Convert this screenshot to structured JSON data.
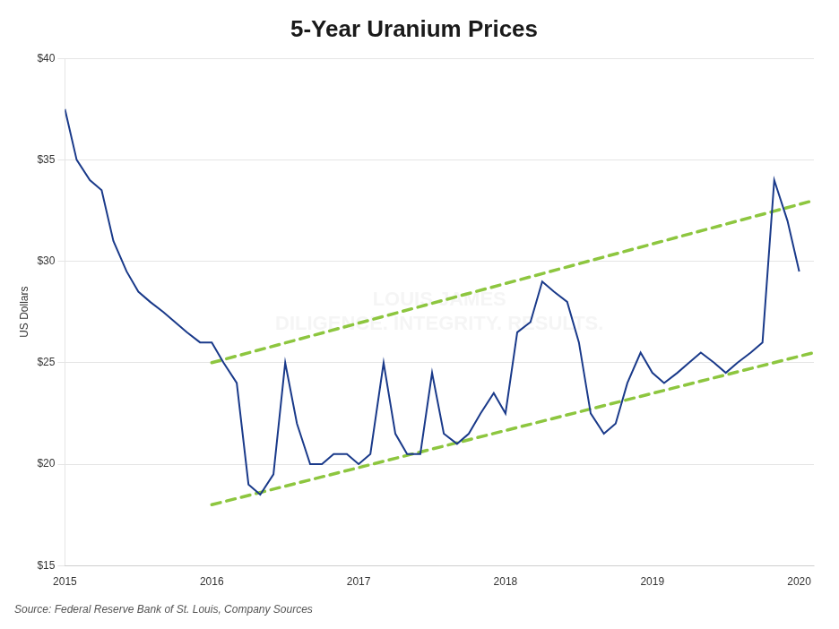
{
  "chart_data": {
    "type": "line",
    "title": "5-Year Uranium Prices",
    "ylabel": "US Dollars",
    "annotations": [
      "Source: Federal Reserve Bank of St. Louis, Company Sources",
      "LOUIS JAMES\nDILIGENCE. INTEGRITY. RESULTS."
    ],
    "xlim": [
      2015.0,
      2020.1
    ],
    "ylim": [
      15,
      40
    ],
    "xticks": [
      2015,
      2016,
      2017,
      2018,
      2019,
      2020
    ],
    "yticks": [
      {
        "value": 15,
        "label": "$15"
      },
      {
        "value": 20,
        "label": "$20"
      },
      {
        "value": 25,
        "label": "$25"
      },
      {
        "value": 30,
        "label": "$30"
      },
      {
        "value": 35,
        "label": "$35"
      },
      {
        "value": 40,
        "label": "$40"
      }
    ],
    "grid": "y",
    "series": [
      {
        "color": "#1a3a8a",
        "line_style": "solid",
        "x": [
          2015.0,
          2015.08,
          2015.17,
          2015.25,
          2015.33,
          2015.42,
          2015.5,
          2015.58,
          2015.67,
          2015.75,
          2015.83,
          2015.92,
          2016.0,
          2016.08,
          2016.17,
          2016.25,
          2016.33,
          2016.42,
          2016.5,
          2016.58,
          2016.67,
          2016.75,
          2016.83,
          2016.92,
          2017.0,
          2017.08,
          2017.17,
          2017.25,
          2017.33,
          2017.42,
          2017.5,
          2017.58,
          2017.67,
          2017.75,
          2017.83,
          2017.92,
          2018.0,
          2018.08,
          2018.17,
          2018.25,
          2018.33,
          2018.42,
          2018.5,
          2018.58,
          2018.67,
          2018.75,
          2018.83,
          2018.92,
          2019.0,
          2019.08,
          2019.17,
          2019.25,
          2019.33,
          2019.42,
          2019.5,
          2019.58,
          2019.67,
          2019.75,
          2019.83,
          2019.92,
          2020.0
        ],
        "values": [
          37.5,
          35.0,
          34.0,
          33.5,
          31.0,
          29.5,
          28.5,
          28.0,
          27.5,
          27.0,
          26.5,
          26.0,
          26.0,
          25.0,
          24.0,
          19.0,
          18.5,
          19.5,
          25.0,
          22.0,
          20.0,
          20.0,
          20.5,
          20.5,
          20.0,
          20.5,
          25.0,
          21.5,
          20.5,
          20.5,
          24.5,
          21.5,
          21.0,
          21.5,
          22.5,
          23.5,
          22.5,
          26.5,
          27.0,
          29.0,
          28.5,
          28.0,
          26.0,
          22.5,
          21.5,
          22.0,
          24.0,
          25.5,
          24.5,
          24.0,
          24.5,
          25.0,
          25.5,
          25.0,
          24.5,
          25.0,
          25.5,
          26.0,
          34.0,
          32.0,
          29.5
        ]
      },
      {
        "color": "#8dc63f",
        "line_style": "dashed",
        "x": [
          2016.0,
          2020.1
        ],
        "values": [
          25.0,
          33.0
        ]
      },
      {
        "color": "#8dc63f",
        "line_style": "dashed",
        "x": [
          2016.0,
          2020.1
        ],
        "values": [
          18.0,
          25.5
        ]
      }
    ]
  }
}
